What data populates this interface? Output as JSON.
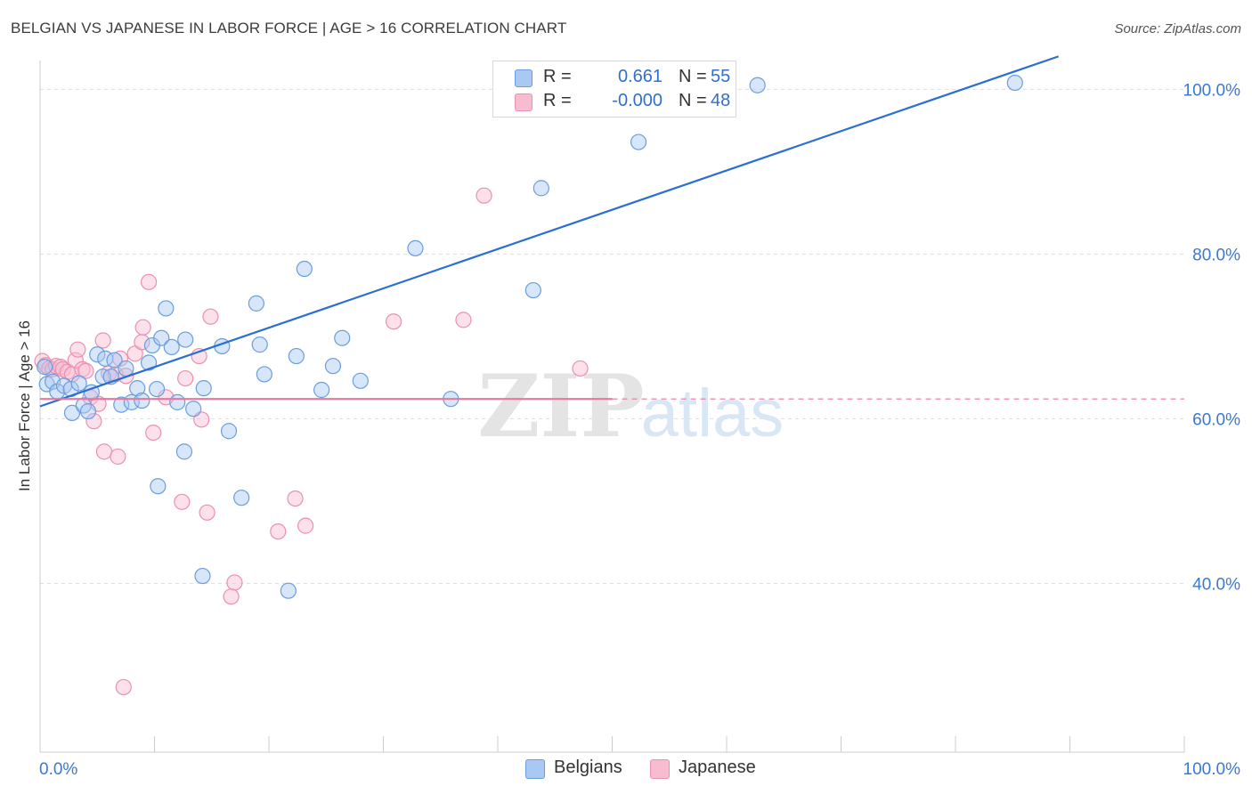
{
  "header": {
    "title": "BELGIAN VS JAPANESE IN LABOR FORCE | AGE > 16 CORRELATION CHART",
    "source": "Source: ZipAtlas.com"
  },
  "legend": {
    "rows": [
      {
        "r_label": "R =",
        "r_value": "0.661",
        "n_label": "N =",
        "n_value": "55"
      },
      {
        "r_label": "R =",
        "r_value": "-0.000",
        "n_label": "N =",
        "n_value": "48"
      }
    ]
  },
  "bottom_legend": {
    "belgians": "Belgians",
    "japanese": "Japanese"
  },
  "colors": {
    "belgian_fill": "#a9c8f2",
    "belgian_stroke": "#6a9de0",
    "belgian_line": "#2a6fd2",
    "japanese_fill": "#f8bcd0",
    "japanese_stroke": "#ec8fb0",
    "japanese_line": "#e8769d",
    "tick_label": "#3a78d4",
    "grid": "#dddddd",
    "axis": "#cccccc"
  },
  "chart_data": {
    "type": "scatter",
    "title": "BELGIAN VS JAPANESE IN LABOR FORCE | AGE > 16 CORRELATION CHART",
    "xlabel": "",
    "ylabel": "In Labor Force | Age > 16",
    "xlim": [
      0,
      100
    ],
    "ylim": [
      19.5,
      103.5
    ],
    "x_tick_labels": [
      {
        "value": 0,
        "label": "0.0%"
      },
      {
        "value": 100,
        "label": "100.0%"
      }
    ],
    "y_tick_labels": [
      {
        "value": 40,
        "label": "40.0%"
      },
      {
        "value": 60,
        "label": "60.0%"
      },
      {
        "value": 80,
        "label": "80.0%"
      },
      {
        "value": 100,
        "label": "100.0%"
      }
    ],
    "watermark": "ZIPatlas",
    "series": [
      {
        "name": "Belgians",
        "r": 0.661,
        "n": 55,
        "trend": {
          "x": [
            0,
            89
          ],
          "y": [
            61.5,
            104
          ]
        },
        "points": [
          [
            0.4,
            66.3
          ],
          [
            0.6,
            64.2
          ],
          [
            1.1,
            64.5
          ],
          [
            1.5,
            63.3
          ],
          [
            2.1,
            64.0
          ],
          [
            2.7,
            63.6
          ],
          [
            2.8,
            60.7
          ],
          [
            3.4,
            64.3
          ],
          [
            3.8,
            61.6
          ],
          [
            4.2,
            60.9
          ],
          [
            4.5,
            63.2
          ],
          [
            5.0,
            67.8
          ],
          [
            5.5,
            65.1
          ],
          [
            5.7,
            67.3
          ],
          [
            6.2,
            65.1
          ],
          [
            6.5,
            67.1
          ],
          [
            7.1,
            61.7
          ],
          [
            7.5,
            66.1
          ],
          [
            8.0,
            62.0
          ],
          [
            8.5,
            63.7
          ],
          [
            8.9,
            62.2
          ],
          [
            9.5,
            66.8
          ],
          [
            9.8,
            68.9
          ],
          [
            10.2,
            63.6
          ],
          [
            10.6,
            69.8
          ],
          [
            11.0,
            73.4
          ],
          [
            11.5,
            68.7
          ],
          [
            12.0,
            62.0
          ],
          [
            12.7,
            69.6
          ],
          [
            13.4,
            61.2
          ],
          [
            14.3,
            63.7
          ],
          [
            15.9,
            68.8
          ],
          [
            16.5,
            58.5
          ],
          [
            17.6,
            50.4
          ],
          [
            18.9,
            74.0
          ],
          [
            19.2,
            69.0
          ],
          [
            19.6,
            65.4
          ],
          [
            22.4,
            67.6
          ],
          [
            23.1,
            78.2
          ],
          [
            24.6,
            63.5
          ],
          [
            25.6,
            66.4
          ],
          [
            26.4,
            69.8
          ],
          [
            28.0,
            64.6
          ],
          [
            32.8,
            80.7
          ],
          [
            35.9,
            62.4
          ],
          [
            43.1,
            75.6
          ],
          [
            43.8,
            88.0
          ],
          [
            52.3,
            93.6
          ],
          [
            12.6,
            56.0
          ],
          [
            10.3,
            51.8
          ],
          [
            14.2,
            40.9
          ],
          [
            21.7,
            39.1
          ],
          [
            62.7,
            100.5
          ],
          [
            85.2,
            100.8
          ]
        ]
      },
      {
        "name": "Japanese",
        "r": -0.0,
        "n": 48,
        "trend": {
          "x": [
            0,
            50
          ],
          "y": [
            62.4,
            62.4
          ]
        },
        "trend_dashed": {
          "x": [
            50,
            100
          ],
          "y": [
            62.4,
            62.4
          ]
        },
        "points": [
          [
            0.2,
            67.0
          ],
          [
            0.5,
            66.5
          ],
          [
            0.8,
            66.1
          ],
          [
            1.1,
            66.0
          ],
          [
            1.4,
            66.4
          ],
          [
            1.8,
            66.3
          ],
          [
            2.0,
            66.0
          ],
          [
            2.4,
            65.7
          ],
          [
            2.8,
            65.4
          ],
          [
            3.1,
            67.1
          ],
          [
            3.3,
            68.4
          ],
          [
            3.7,
            66.0
          ],
          [
            4.0,
            65.8
          ],
          [
            4.4,
            62.6
          ],
          [
            4.7,
            59.7
          ],
          [
            5.1,
            61.8
          ],
          [
            5.5,
            69.5
          ],
          [
            6.0,
            65.5
          ],
          [
            6.6,
            65.4
          ],
          [
            7.0,
            67.3
          ],
          [
            7.5,
            65.2
          ],
          [
            8.3,
            67.9
          ],
          [
            8.9,
            69.3
          ],
          [
            9.0,
            71.1
          ],
          [
            9.5,
            76.6
          ],
          [
            9.9,
            58.3
          ],
          [
            11.0,
            62.6
          ],
          [
            12.7,
            64.9
          ],
          [
            13.9,
            67.6
          ],
          [
            14.1,
            59.9
          ],
          [
            14.9,
            72.4
          ],
          [
            5.6,
            56.0
          ],
          [
            6.8,
            55.4
          ],
          [
            12.4,
            49.9
          ],
          [
            14.6,
            48.6
          ],
          [
            16.7,
            38.4
          ],
          [
            17.0,
            40.1
          ],
          [
            20.8,
            46.3
          ],
          [
            22.3,
            50.3
          ],
          [
            23.2,
            47.0
          ],
          [
            30.9,
            71.8
          ],
          [
            37.0,
            72.0
          ],
          [
            38.8,
            87.1
          ],
          [
            47.2,
            66.1
          ],
          [
            7.3,
            27.4
          ]
        ]
      }
    ]
  }
}
